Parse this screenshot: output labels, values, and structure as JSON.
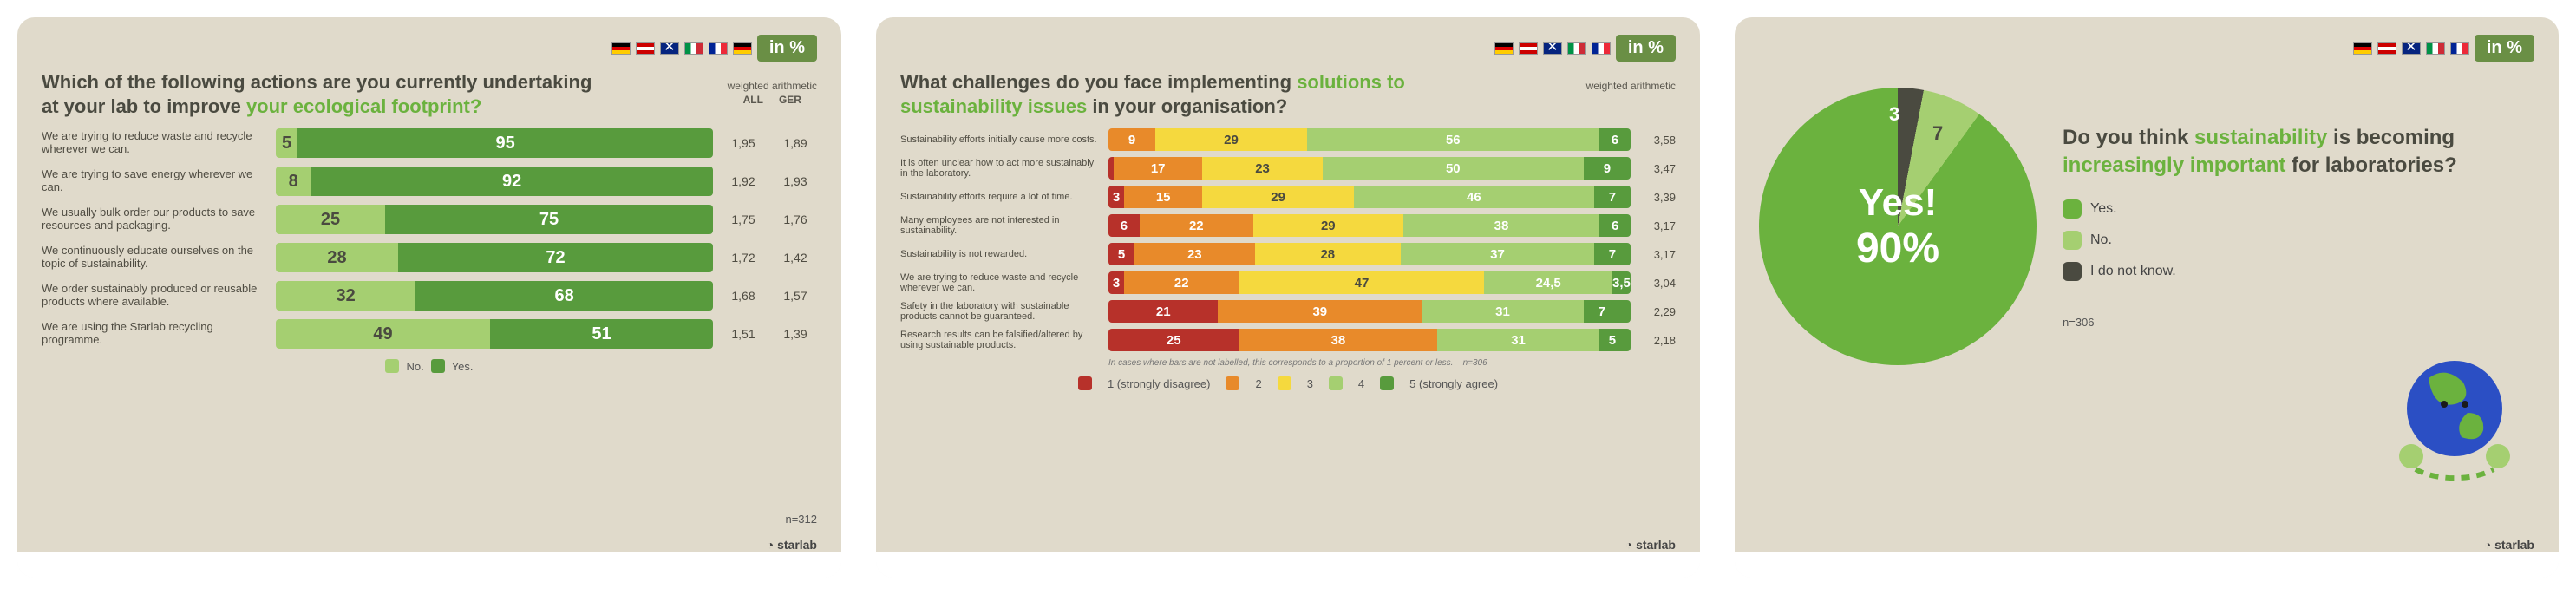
{
  "common": {
    "in_pct": "in %",
    "brand": "starlab",
    "flags": [
      "de",
      "at",
      "uk",
      "it",
      "fr",
      "de"
    ]
  },
  "palette": {
    "panel_bg": "#e0dacb",
    "accent_green": "#6bb23e",
    "dark_green": "#589b3d",
    "light_green": "#a5cf71",
    "yellow": "#f5d93e",
    "orange": "#e88a2a",
    "red": "#b7312a",
    "dark_grey": "#4a4a40",
    "text_grey": "#5a574e"
  },
  "panel1": {
    "title_plain": "Which of the following actions are you currently undertaking at your lab to improve ",
    "title_accent": "your ecological footprint?",
    "wa_header": "weighted arithmetic",
    "wa_cols": [
      "ALL",
      "GER"
    ],
    "colors": {
      "no": "#a5cf71",
      "yes": "#589b3d"
    },
    "legend": {
      "no": "No.",
      "yes": "Yes."
    },
    "n_label": "n=312",
    "rows": [
      {
        "label": "We are trying to reduce waste and recycle wherever we can.",
        "no": 5,
        "yes": 95,
        "all": "1,95",
        "ger": "1,89"
      },
      {
        "label": "We are trying to save energy wherever we can.",
        "no": 8,
        "yes": 92,
        "all": "1,92",
        "ger": "1,93"
      },
      {
        "label": "We usually bulk order our products to save resources and packaging.",
        "no": 25,
        "yes": 75,
        "all": "1,75",
        "ger": "1,76"
      },
      {
        "label": "We continuously educate ourselves on the topic of sustainability.",
        "no": 28,
        "yes": 72,
        "all": "1,72",
        "ger": "1,42"
      },
      {
        "label": "We order sustainably produced or reusable products where available.",
        "no": 32,
        "yes": 68,
        "all": "1,68",
        "ger": "1,57"
      },
      {
        "label": "We are using the Starlab recycling programme.",
        "no": 49,
        "yes": 51,
        "all": "1,51",
        "ger": "1,39"
      }
    ]
  },
  "panel2": {
    "title_a": "What challenges do you face implementing ",
    "title_b": "solutions to sustainability issues",
    "title_c": " in your organisation?",
    "wa_header": "weighted arithmetic",
    "colors": {
      "c1": "#b7312a",
      "c2": "#e88a2a",
      "c3": "#f5d93e",
      "c4": "#a5cf71",
      "c5": "#589b3d"
    },
    "legend": {
      "l1": "1 (strongly disagree)",
      "l2": "2",
      "l3": "3",
      "l4": "4",
      "l5": "5 (strongly agree)"
    },
    "footnote": "In cases where bars are not labelled, this corresponds to a proportion of 1 percent or less.",
    "n_label": "n=306",
    "rows": [
      {
        "label": "Sustainability efforts initially cause more costs.",
        "v": [
          0,
          9,
          29,
          56,
          6
        ],
        "wa": "3,58"
      },
      {
        "label": "It is often unclear how to act more sustainably in the laboratory.",
        "v": [
          1,
          17,
          23,
          50,
          9
        ],
        "wa": "3,47"
      },
      {
        "label": "Sustainability efforts require a lot of time.",
        "v": [
          3,
          15,
          29,
          46,
          7
        ],
        "wa": "3,39"
      },
      {
        "label": "Many employees are not interested in sustainability.",
        "v": [
          6,
          22,
          29,
          38,
          6
        ],
        "wa": "3,17"
      },
      {
        "label": "Sustainability is not rewarded.",
        "v": [
          5,
          23,
          28,
          37,
          7
        ],
        "wa": "3,17"
      },
      {
        "label": "We are trying to reduce waste and recycle wherever we can.",
        "v": [
          3,
          22,
          47,
          24.5,
          3.5
        ],
        "wa": "3,04"
      },
      {
        "label": "Safety in the laboratory with sustainable products cannot be guaranteed.",
        "v": [
          21,
          39,
          0,
          31,
          7,
          2
        ],
        "special": "six",
        "wa": "2,29"
      },
      {
        "label": "Research results can be falsified/altered by using sustainable products.",
        "v": [
          25,
          38,
          0,
          31,
          5,
          1
        ],
        "special": "six",
        "wa": "2,18"
      }
    ]
  },
  "panel3": {
    "title_a": "Do you think ",
    "title_b": "sustainability",
    "title_c": " is becoming ",
    "title_d": "increasingly important",
    "title_e": " for laboratories?",
    "slices": {
      "yes": 90,
      "no": 7,
      "idk": 3
    },
    "colors": {
      "yes": "#6bb23e",
      "no": "#a5cf71",
      "idk": "#4a4a40"
    },
    "labels": {
      "yes": "Yes!",
      "pct": "90%",
      "no": "7",
      "idk": "3"
    },
    "legend": {
      "yes": "Yes.",
      "no": "No.",
      "idk": "I do not know."
    },
    "n_label": "n=306"
  }
}
